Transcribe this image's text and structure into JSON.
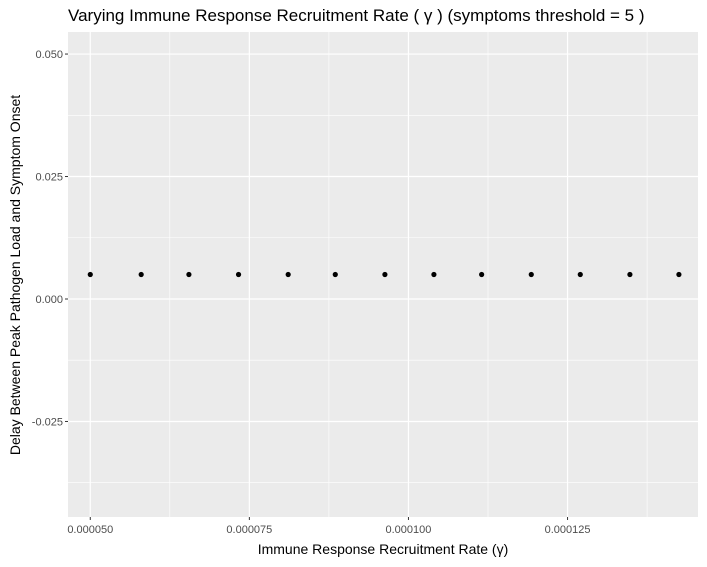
{
  "chart_data": {
    "type": "scatter",
    "title": "Varying Immune Response Recruitment Rate ( γ )  (symptoms threshold =  5 )",
    "xlabel": "Immune Response Recruitment Rate (γ)",
    "ylabel": "Delay Between Peak Pathogen Load and Symptom Onset",
    "xlim": [
      4.65e-05,
      0.0001455
    ],
    "ylim": [
      -0.0445,
      0.0545
    ],
    "x_ticks": [
      5e-05,
      7.5e-05,
      0.0001,
      0.000125
    ],
    "x_tick_labels": [
      "0.000050",
      "0.000075",
      "0.000100",
      "0.000125"
    ],
    "y_ticks": [
      -0.025,
      0.0,
      0.025,
      0.05
    ],
    "y_tick_labels": [
      "-0.025",
      "0.000",
      "0.025",
      "0.050"
    ],
    "grid": true,
    "point_color": "#000000",
    "panel_background": "#ebebeb",
    "grid_color": "#ffffff",
    "points": [
      {
        "x": 5e-05,
        "y": 0.005
      },
      {
        "x": 5.8e-05,
        "y": 0.005
      },
      {
        "x": 6.55e-05,
        "y": 0.005
      },
      {
        "x": 7.33e-05,
        "y": 0.005
      },
      {
        "x": 8.11e-05,
        "y": 0.005
      },
      {
        "x": 8.85e-05,
        "y": 0.005
      },
      {
        "x": 9.63e-05,
        "y": 0.005
      },
      {
        "x": 0.000104,
        "y": 0.005
      },
      {
        "x": 0.0001115,
        "y": 0.005
      },
      {
        "x": 0.0001193,
        "y": 0.005
      },
      {
        "x": 0.000127,
        "y": 0.005
      },
      {
        "x": 0.0001348,
        "y": 0.005
      },
      {
        "x": 0.0001425,
        "y": 0.005
      }
    ]
  }
}
